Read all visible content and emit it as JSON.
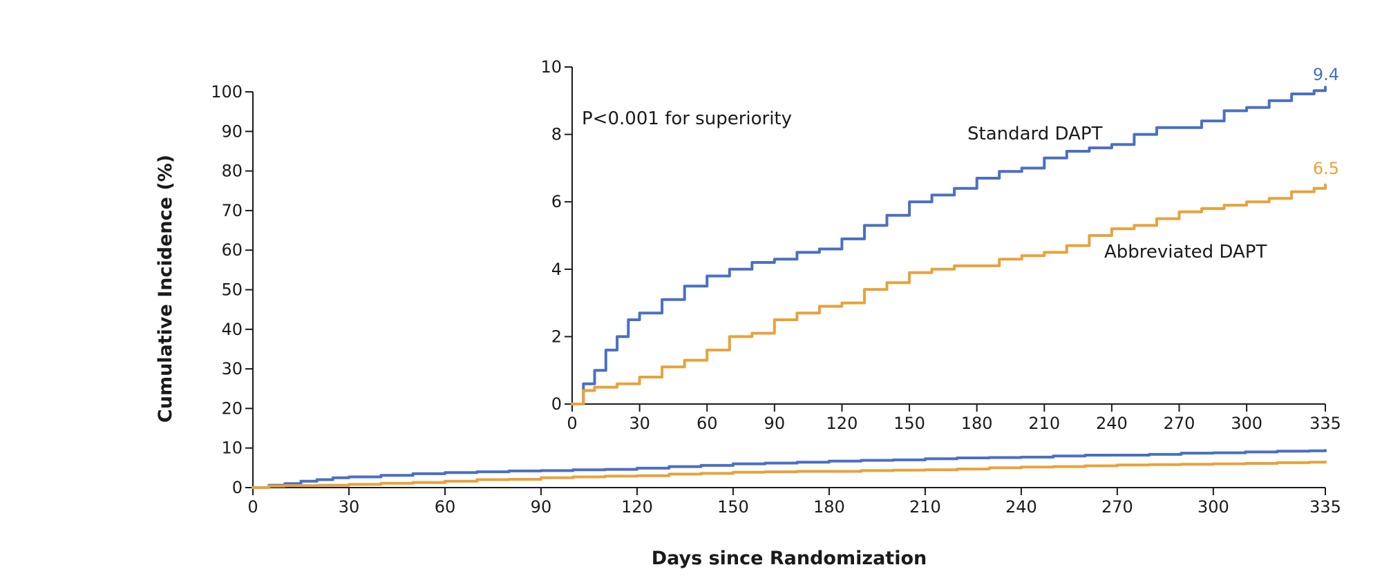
{
  "chart_data": [
    {
      "type": "line",
      "panel": "main",
      "xlabel": "Days since Randomization",
      "ylabel": "Cumulative Incidence (%)",
      "xlim": [
        0,
        335
      ],
      "ylim": [
        0,
        100
      ],
      "xticks": [
        0,
        30,
        60,
        90,
        120,
        150,
        180,
        210,
        240,
        270,
        300,
        335
      ],
      "yticks": [
        0,
        10,
        20,
        30,
        40,
        50,
        60,
        70,
        80,
        90,
        100
      ],
      "grid": false,
      "series": [
        {
          "name": "Standard DAPT",
          "color": "#4a6fc4",
          "x": [
            0,
            5,
            10,
            15,
            20,
            25,
            30,
            40,
            50,
            60,
            70,
            80,
            90,
            100,
            110,
            120,
            130,
            140,
            150,
            160,
            170,
            180,
            190,
            200,
            210,
            220,
            230,
            240,
            250,
            260,
            270,
            280,
            290,
            300,
            310,
            320,
            330,
            335
          ],
          "values": [
            0,
            0.6,
            1.0,
            1.6,
            2.0,
            2.5,
            2.7,
            3.1,
            3.5,
            3.8,
            4.0,
            4.2,
            4.3,
            4.5,
            4.6,
            4.9,
            5.3,
            5.6,
            6.0,
            6.2,
            6.4,
            6.7,
            6.9,
            7.0,
            7.3,
            7.5,
            7.6,
            7.7,
            8.0,
            8.2,
            8.2,
            8.4,
            8.7,
            8.8,
            9.0,
            9.2,
            9.3,
            9.4
          ]
        },
        {
          "name": "Abbreviated DAPT",
          "color": "#e8a23a",
          "x": [
            0,
            5,
            10,
            15,
            20,
            25,
            30,
            40,
            50,
            60,
            70,
            80,
            90,
            100,
            110,
            120,
            130,
            140,
            150,
            160,
            170,
            180,
            190,
            200,
            210,
            220,
            230,
            240,
            250,
            260,
            270,
            280,
            290,
            300,
            310,
            320,
            330,
            335
          ],
          "values": [
            0,
            0.4,
            0.5,
            0.5,
            0.6,
            0.6,
            0.8,
            1.1,
            1.3,
            1.6,
            2.0,
            2.1,
            2.5,
            2.7,
            2.9,
            3.0,
            3.4,
            3.6,
            3.9,
            4.0,
            4.1,
            4.1,
            4.3,
            4.4,
            4.5,
            4.7,
            5.0,
            5.2,
            5.3,
            5.5,
            5.7,
            5.8,
            5.9,
            6.0,
            6.1,
            6.3,
            6.4,
            6.5
          ]
        }
      ]
    },
    {
      "type": "line",
      "panel": "inset",
      "annotation": "P<0.001 for superiority",
      "xlim": [
        0,
        335
      ],
      "ylim": [
        0,
        10
      ],
      "xticks": [
        0,
        30,
        60,
        90,
        120,
        150,
        180,
        210,
        240,
        270,
        300,
        335
      ],
      "yticks": [
        0,
        2,
        4,
        6,
        8,
        10
      ],
      "grid": false,
      "series_labels": [
        {
          "name": "Standard DAPT",
          "end_value": "9.4",
          "color": "#4a6fc4"
        },
        {
          "name": "Abbreviated DAPT",
          "end_value": "6.5",
          "color": "#e8a23a"
        }
      ]
    }
  ]
}
